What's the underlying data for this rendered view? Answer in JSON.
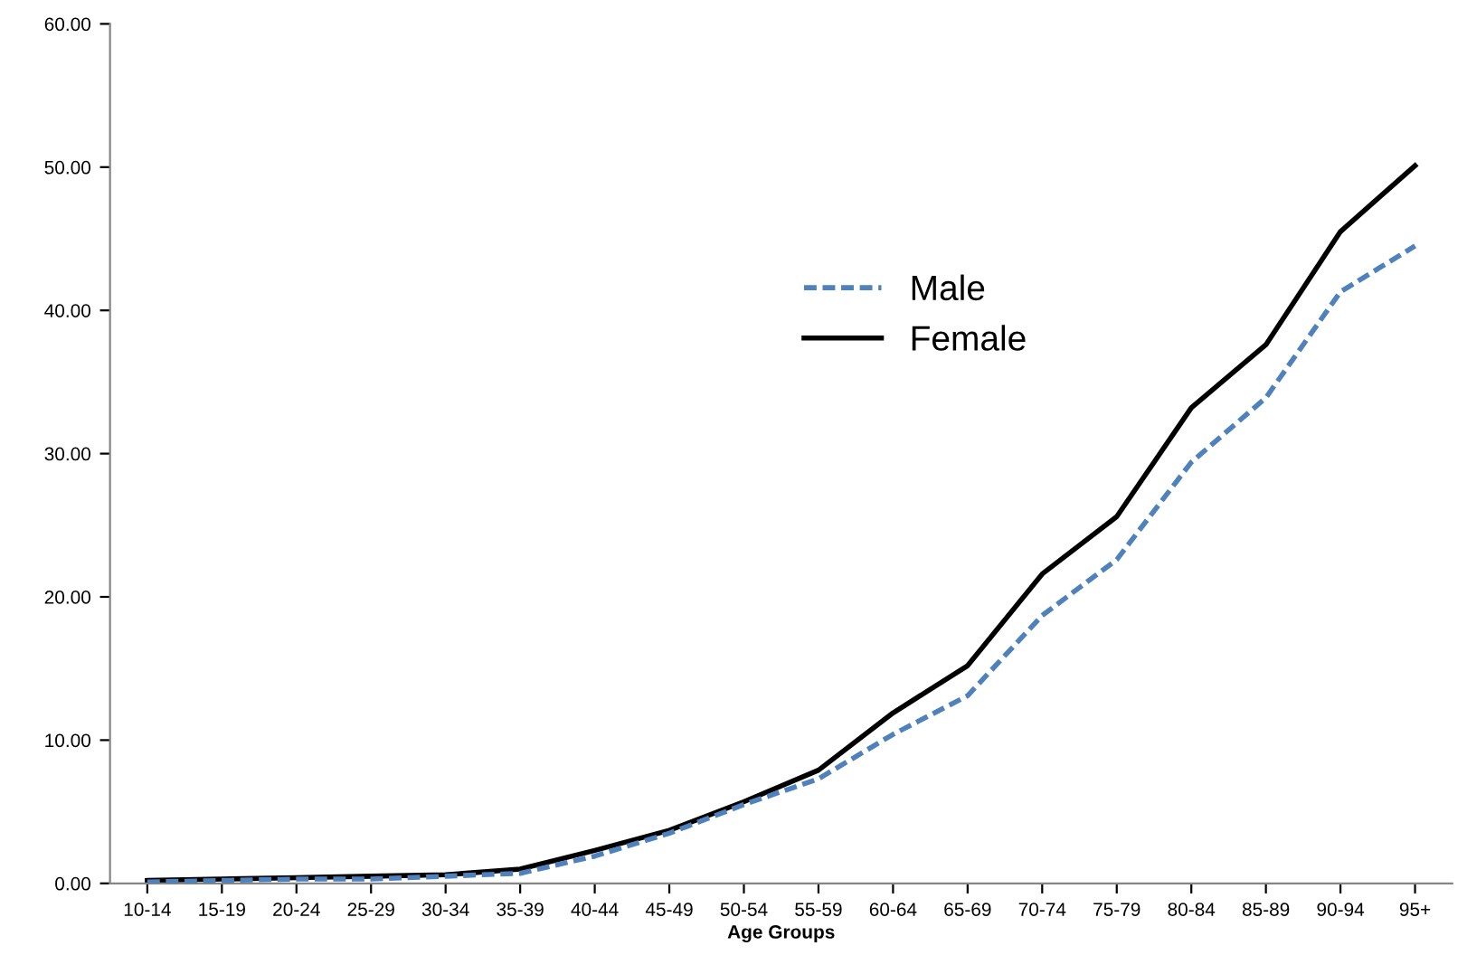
{
  "chart_data": {
    "type": "line",
    "xlabel": "Age Groups",
    "categories": [
      "10-14",
      "15-19",
      "20-24",
      "25-29",
      "30-34",
      "35-39",
      "40-44",
      "45-49",
      "50-54",
      "55-59",
      "60-64",
      "65-69",
      "70-74",
      "75-79",
      "80-84",
      "85-89",
      "90-94",
      "95+"
    ],
    "series": [
      {
        "name": "Male",
        "color": "#4f81bd",
        "line_style": "dashed",
        "values": [
          0.1,
          0.2,
          0.3,
          0.3,
          0.5,
          0.7,
          1.9,
          3.5,
          5.5,
          7.3,
          10.4,
          13.1,
          18.7,
          22.6,
          29.4,
          33.9,
          41.3,
          44.5
        ]
      },
      {
        "name": "Female",
        "color": "#000000",
        "line_style": "solid",
        "values": [
          0.2,
          0.3,
          0.4,
          0.5,
          0.6,
          1.0,
          2.3,
          3.7,
          5.7,
          7.9,
          11.9,
          15.2,
          21.6,
          25.6,
          33.2,
          37.6,
          45.5,
          50.1
        ]
      }
    ],
    "ylim": [
      0,
      60
    ],
    "yticks": [
      {
        "value": 0,
        "label": "0.00"
      },
      {
        "value": 10,
        "label": "10.00"
      },
      {
        "value": 20,
        "label": "20.00"
      },
      {
        "value": 30,
        "label": "30.00"
      },
      {
        "value": 40,
        "label": "40.00"
      },
      {
        "value": 50,
        "label": "50.00"
      },
      {
        "value": 60,
        "label": "60.00"
      }
    ],
    "grid": false,
    "legend": "center",
    "marker": "none"
  }
}
